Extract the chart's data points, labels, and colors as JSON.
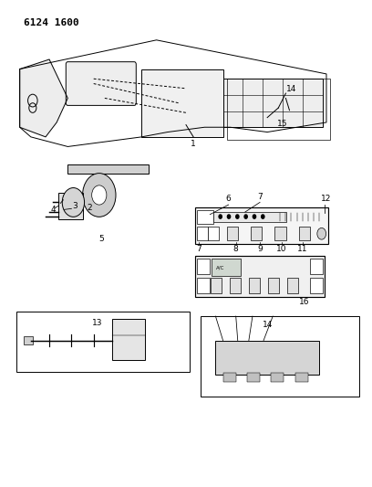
{
  "title": "6124 1600",
  "bg_color": "#ffffff",
  "line_color": "#000000",
  "fig_width": 4.08,
  "fig_height": 5.33,
  "dpi": 100
}
